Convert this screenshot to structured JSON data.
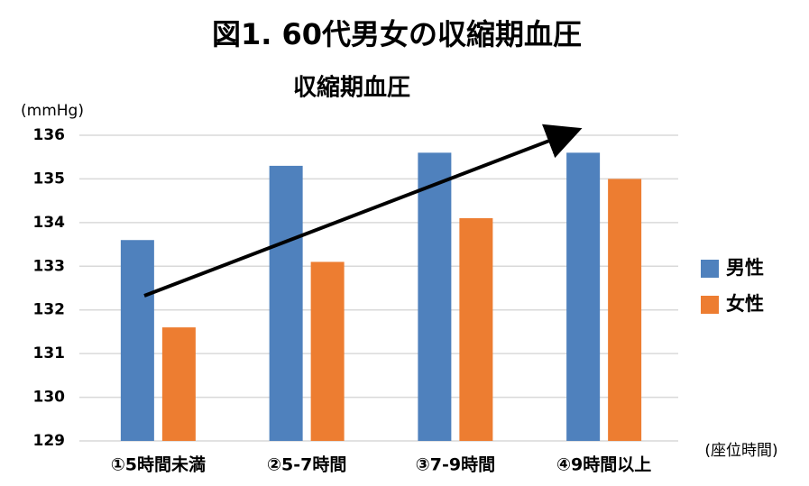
{
  "chart_data": {
    "type": "bar",
    "title": "図1. 60代男女の収縮期血圧",
    "subtitle": "収縮期血圧",
    "y_label": "(mmHg)",
    "x_label": "(座位時間)",
    "categories": [
      "①5時間未満",
      "②5-7時間",
      "③7-9時間",
      "④9時間以上"
    ],
    "series": [
      {
        "name": "男性",
        "color": "#4f81bd",
        "values": [
          133.6,
          135.3,
          135.6,
          135.6
        ]
      },
      {
        "name": "女性",
        "color": "#ed7d31",
        "values": [
          131.6,
          133.1,
          134.1,
          135.0
        ]
      }
    ],
    "ylim": [
      129,
      136
    ],
    "yticks": [
      129,
      130,
      131,
      132,
      133,
      134,
      135,
      136
    ],
    "grid": true,
    "legend": "right"
  }
}
